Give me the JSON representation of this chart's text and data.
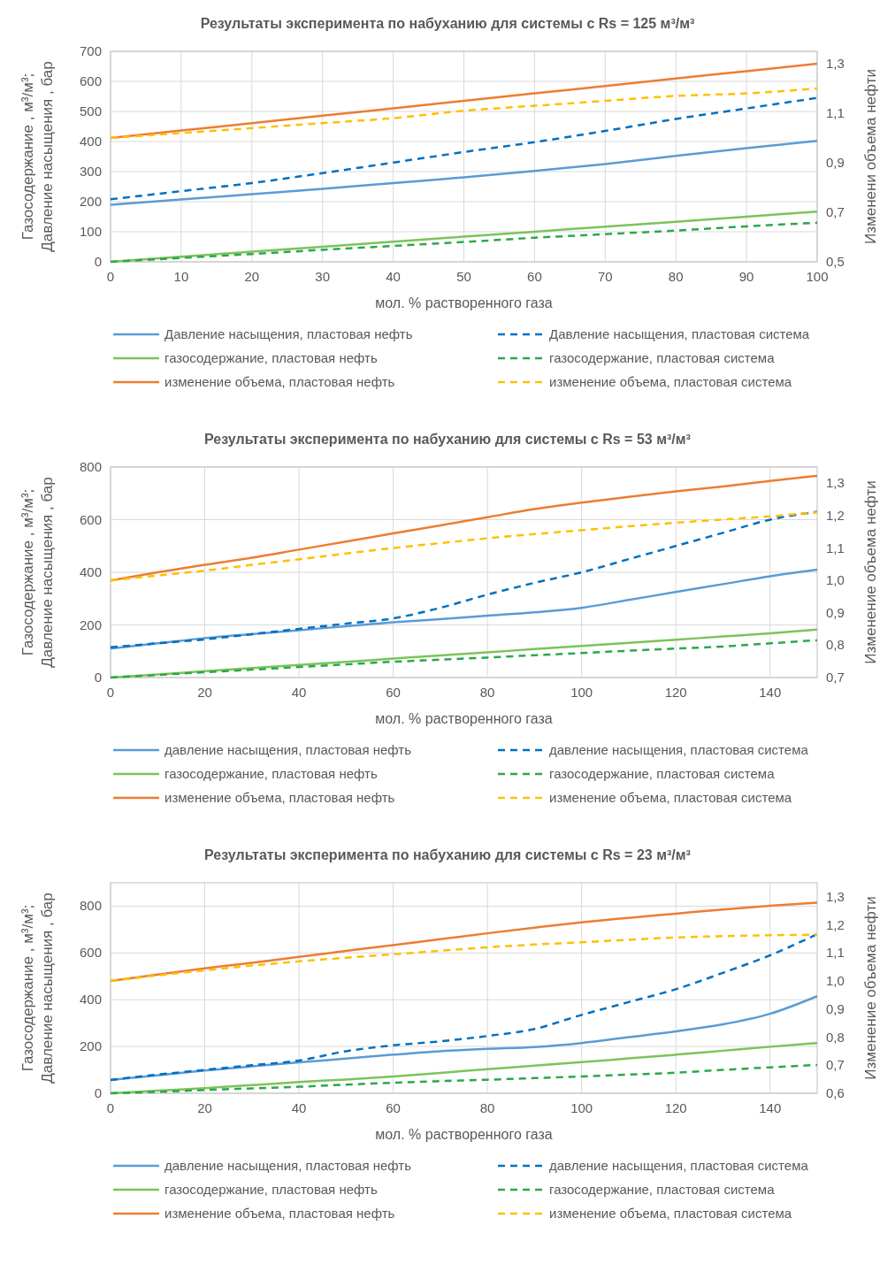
{
  "chart_data": [
    {
      "type": "line",
      "title": "Результаты эксперимента по набуханию для системы с Rs = 125  м³/м³",
      "xlabel": "мол. % растворенного газа",
      "ylabel": "Газосодержание , м³/м³;\nДавление насыщения , бар",
      "y2label": "Изменени объема нефти",
      "x": [
        0,
        10,
        20,
        30,
        40,
        50,
        60,
        70,
        80,
        90,
        100
      ],
      "xlim": [
        0,
        100
      ],
      "xticks": [
        0,
        10,
        20,
        30,
        40,
        50,
        60,
        70,
        80,
        90,
        100
      ],
      "ylim": [
        0,
        700
      ],
      "yticks": [
        0,
        100,
        200,
        300,
        400,
        500,
        600,
        700
      ],
      "y2lim": [
        0.5,
        1.35
      ],
      "y2ticks": [
        {
          "value": 0.5,
          "label": "0,5"
        },
        {
          "value": 0.7,
          "label": "0,7"
        },
        {
          "value": 0.9,
          "label": "0,9"
        },
        {
          "value": 1.1,
          "label": "1,1"
        },
        {
          "value": 1.3,
          "label": "1,3"
        }
      ],
      "grid": true,
      "legend": "bottom",
      "series": [
        {
          "name": "Давление насыщения, пластовая нефть",
          "color": "#5b9bd5",
          "line_style": "solid",
          "values": [
            190,
            207,
            225,
            243,
            262,
            281,
            302,
            325,
            352,
            378,
            402
          ]
        },
        {
          "name": "Давление насыщения, пластовая система",
          "color": "#0070c0",
          "line_style": "dashed",
          "values": [
            208,
            235,
            262,
            295,
            330,
            365,
            398,
            435,
            475,
            510,
            545
          ]
        },
        {
          "name": "газосодержание, пластовая нефть",
          "color": "#7cc35a",
          "line_style": "solid",
          "values": [
            0,
            17,
            34,
            50,
            67,
            84,
            100,
            117,
            133,
            150,
            167
          ]
        },
        {
          "name": "газосодержание, пластовая система",
          "color": "#2ca84a",
          "line_style": "dashed",
          "values": [
            0,
            13,
            26,
            40,
            53,
            66,
            80,
            92,
            104,
            118,
            130
          ]
        },
        {
          "name": "изменение объема, пластовая нефть",
          "color": "#ed7d31",
          "line_style": "solid",
          "axis": "y2",
          "values": [
            1.0,
            1.03,
            1.06,
            1.09,
            1.12,
            1.15,
            1.18,
            1.21,
            1.24,
            1.27,
            1.3
          ]
        },
        {
          "name": "изменение объема, пластовая система",
          "color": "#ffc000",
          "line_style": "dashed",
          "axis": "y2",
          "values": [
            1.0,
            1.02,
            1.04,
            1.06,
            1.08,
            1.11,
            1.13,
            1.15,
            1.17,
            1.18,
            1.2
          ]
        }
      ]
    },
    {
      "type": "line",
      "title": "Результаты эксперимента по набуханию для системы с Rs = 53  м³/м³",
      "xlabel": "мол. % растворенного газа",
      "ylabel": "Газосодержание , м³/м³;\nДавление насыщения , бар",
      "y2label": "Изменение объема нефти",
      "x": [
        0,
        10,
        20,
        30,
        40,
        50,
        60,
        70,
        80,
        90,
        100,
        110,
        120,
        130,
        140,
        150
      ],
      "xlim": [
        0,
        150
      ],
      "xticks": [
        0,
        20,
        40,
        60,
        80,
        100,
        120,
        140
      ],
      "ylim": [
        0,
        800
      ],
      "yticks": [
        0,
        200,
        400,
        600,
        800
      ],
      "y2lim": [
        0.7,
        1.35
      ],
      "y2ticks": [
        {
          "value": 0.7,
          "label": "0,7"
        },
        {
          "value": 0.8,
          "label": "0,8"
        },
        {
          "value": 0.9,
          "label": "0,9"
        },
        {
          "value": 1.0,
          "label": "1,0"
        },
        {
          "value": 1.1,
          "label": "1,1"
        },
        {
          "value": 1.2,
          "label": "1,2"
        },
        {
          "value": 1.3,
          "label": "1,3"
        }
      ],
      "grid": true,
      "legend": "bottom",
      "series": [
        {
          "name": "давление насыщения, пластовая нефть",
          "color": "#5b9bd5",
          "line_style": "solid",
          "values": [
            110,
            130,
            150,
            165,
            180,
            195,
            210,
            222,
            235,
            248,
            265,
            295,
            325,
            355,
            385,
            410
          ]
        },
        {
          "name": "давление насыщения, пластовая система",
          "color": "#0070c0",
          "line_style": "dashed",
          "values": [
            115,
            130,
            145,
            165,
            185,
            205,
            225,
            265,
            315,
            360,
            400,
            450,
            500,
            550,
            600,
            630
          ]
        },
        {
          "name": "газосодержание, пластовая нефть",
          "color": "#7cc35a",
          "line_style": "solid",
          "values": [
            0,
            12,
            24,
            36,
            48,
            60,
            72,
            84,
            96,
            108,
            120,
            132,
            144,
            156,
            168,
            182
          ]
        },
        {
          "name": "газосодержание, пластовая система",
          "color": "#2ca84a",
          "line_style": "dashed",
          "values": [
            0,
            10,
            20,
            30,
            40,
            50,
            60,
            68,
            76,
            85,
            93,
            102,
            110,
            118,
            130,
            142
          ]
        },
        {
          "name": "изменение объема, пластовая нефть",
          "color": "#ed7d31",
          "line_style": "solid",
          "axis": "y2",
          "values": [
            1.0,
            1.025,
            1.048,
            1.07,
            1.095,
            1.12,
            1.145,
            1.17,
            1.195,
            1.22,
            1.24,
            1.258,
            1.275,
            1.29,
            1.307,
            1.323
          ]
        },
        {
          "name": "изменение объема, пластовая система",
          "color": "#ffc000",
          "line_style": "dashed",
          "axis": "y2",
          "values": [
            1.0,
            1.015,
            1.03,
            1.048,
            1.065,
            1.083,
            1.1,
            1.115,
            1.13,
            1.143,
            1.155,
            1.167,
            1.178,
            1.188,
            1.198,
            1.21
          ]
        }
      ]
    },
    {
      "type": "line",
      "title": "Результаты эксперимента по набуханию для системы с Rs = 23  м³/м³",
      "xlabel": "мол. % растворенного газа",
      "ylabel": "Газосодержание , м³/м³;\nДавление насыщения ,  бар",
      "y2label": "Изменение объема нефти",
      "x": [
        0,
        10,
        20,
        30,
        40,
        50,
        60,
        70,
        80,
        90,
        100,
        110,
        120,
        130,
        140,
        150
      ],
      "xlim": [
        0,
        150
      ],
      "xticks": [
        0,
        20,
        40,
        60,
        80,
        100,
        120,
        140
      ],
      "ylim": [
        0,
        900
      ],
      "yticks": [
        0,
        200,
        400,
        600,
        800
      ],
      "y2lim": [
        0.6,
        1.35
      ],
      "y2ticks": [
        {
          "value": 0.6,
          "label": "0,6"
        },
        {
          "value": 0.7,
          "label": "0,7"
        },
        {
          "value": 0.8,
          "label": "0,8"
        },
        {
          "value": 0.9,
          "label": "0,9"
        },
        {
          "value": 1.0,
          "label": "1,0"
        },
        {
          "value": 1.1,
          "label": "1,1"
        },
        {
          "value": 1.2,
          "label": "1,2"
        },
        {
          "value": 1.3,
          "label": "1,3"
        }
      ],
      "grid": true,
      "legend": "bottom",
      "series": [
        {
          "name": "давление насыщения, пластовая нефть",
          "color": "#5b9bd5",
          "line_style": "solid",
          "values": [
            57,
            77,
            97,
            115,
            132,
            148,
            165,
            180,
            190,
            198,
            215,
            240,
            265,
            295,
            340,
            415
          ]
        },
        {
          "name": "давление насыщения, пластовая система",
          "color": "#0070c0",
          "line_style": "dashed",
          "values": [
            57,
            80,
            100,
            120,
            140,
            180,
            205,
            222,
            245,
            275,
            335,
            390,
            445,
            515,
            590,
            680
          ]
        },
        {
          "name": "газосодержание, пластовая нефть",
          "color": "#7cc35a",
          "line_style": "solid",
          "values": [
            0,
            11,
            22,
            35,
            48,
            59,
            72,
            87,
            103,
            118,
            133,
            149,
            165,
            182,
            199,
            215
          ]
        },
        {
          "name": "газосодержание, пластовая система",
          "color": "#2ca84a",
          "line_style": "dashed",
          "values": [
            0,
            6,
            14,
            21,
            28,
            37,
            45,
            52,
            58,
            65,
            72,
            80,
            88,
            100,
            111,
            121
          ]
        },
        {
          "name": "изменение объема, пластовая нефть",
          "color": "#ed7d31",
          "line_style": "solid",
          "axis": "y2",
          "values": [
            1.0,
            1.023,
            1.045,
            1.065,
            1.086,
            1.107,
            1.128,
            1.149,
            1.17,
            1.19,
            1.209,
            1.225,
            1.24,
            1.255,
            1.268,
            1.279
          ]
        },
        {
          "name": "изменение объема, пластовая система",
          "color": "#ffc000",
          "line_style": "dashed",
          "axis": "y2",
          "values": [
            1.0,
            1.02,
            1.038,
            1.055,
            1.07,
            1.083,
            1.095,
            1.108,
            1.12,
            1.13,
            1.138,
            1.147,
            1.155,
            1.16,
            1.163,
            1.165
          ]
        }
      ]
    }
  ]
}
